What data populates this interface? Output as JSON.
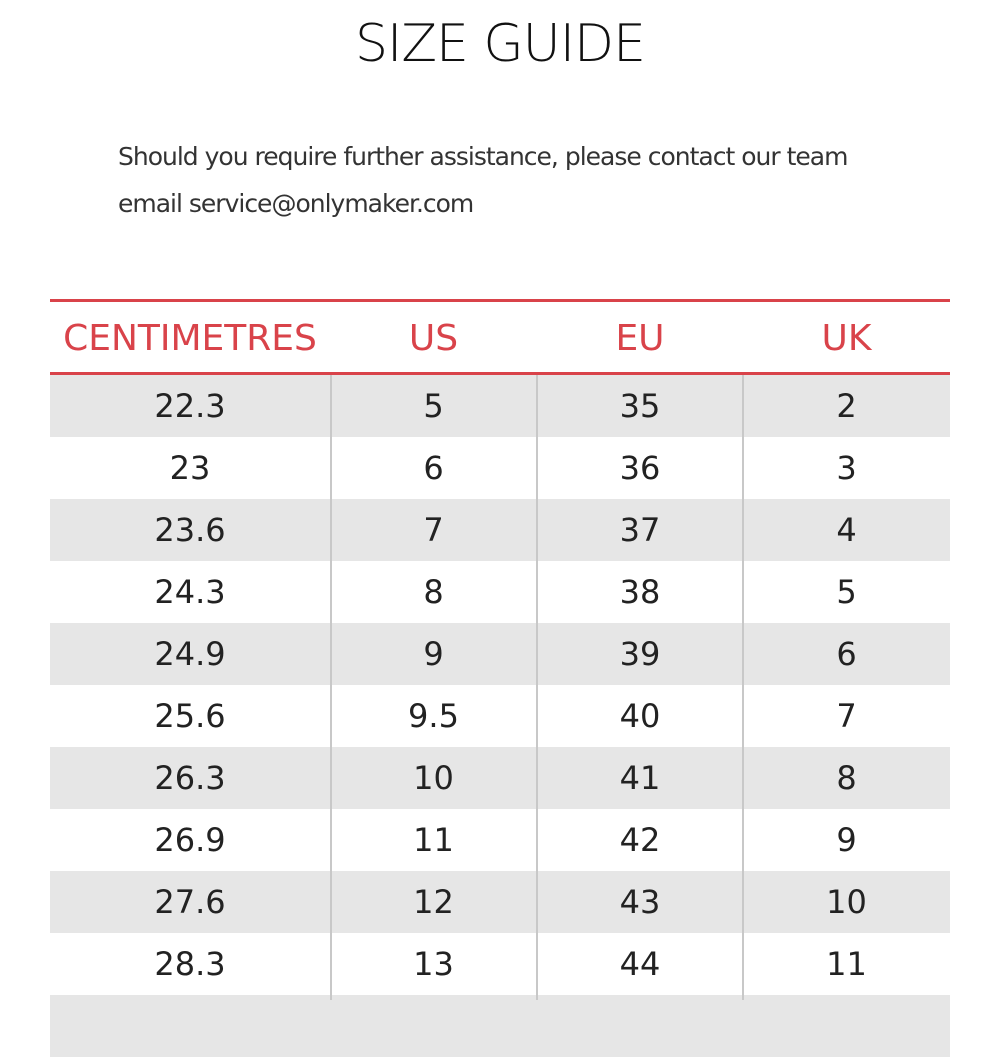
{
  "header": {
    "title": "SIZE GUIDE",
    "lines": [
      "Should you require further assistance, please contact our team",
      "email service@onlymaker.com"
    ]
  },
  "table": {
    "columns": [
      "CENTIMETRES",
      "US",
      "EU",
      "UK"
    ],
    "rows": [
      [
        "22.3",
        "5",
        "35",
        "2"
      ],
      [
        "23",
        "6",
        "36",
        "3"
      ],
      [
        "23.6",
        "7",
        "37",
        "4"
      ],
      [
        "24.3",
        "8",
        "38",
        "5"
      ],
      [
        "24.9",
        "9",
        "39",
        "6"
      ],
      [
        "25.6",
        "9.5",
        "40",
        "7"
      ],
      [
        "26.3",
        "10",
        "41",
        "8"
      ],
      [
        "26.9",
        "11",
        "42",
        "9"
      ],
      [
        "27.6",
        "12",
        "43",
        "10"
      ],
      [
        "28.3",
        "13",
        "44",
        "11"
      ]
    ]
  }
}
